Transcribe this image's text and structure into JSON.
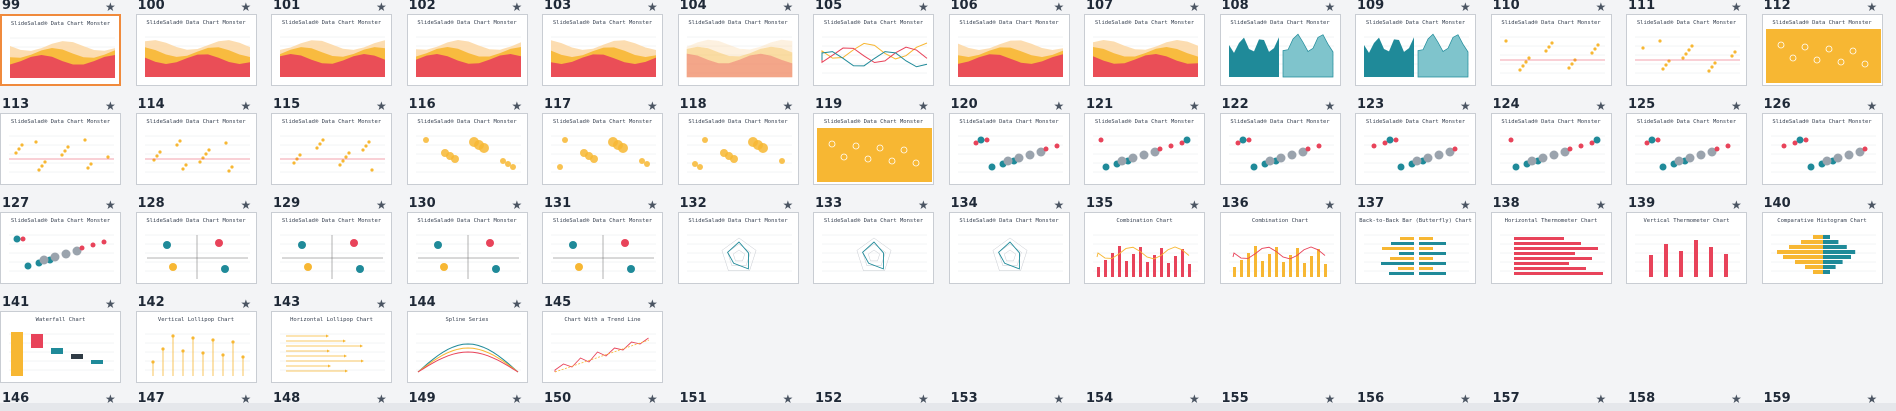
{
  "slides": [
    {
      "num": "99",
      "title": "SlideSalad® Data Chart Monster",
      "kind": "area",
      "selected": true
    },
    {
      "num": "100",
      "title": "SlideSalad® Data Chart Monster",
      "kind": "area"
    },
    {
      "num": "101",
      "title": "SlideSalad® Data Chart Monster",
      "kind": "area"
    },
    {
      "num": "102",
      "title": "SlideSalad® Data Chart Monster",
      "kind": "area"
    },
    {
      "num": "103",
      "title": "SlideSalad® Data Chart Monster",
      "kind": "area"
    },
    {
      "num": "104",
      "title": "SlideSalad® Data Chart Monster",
      "kind": "hatch"
    },
    {
      "num": "105",
      "title": "SlideSalad® Data Chart Monster",
      "kind": "line"
    },
    {
      "num": "106",
      "title": "SlideSalad® Data Chart Monster",
      "kind": "area"
    },
    {
      "num": "107",
      "title": "SlideSalad® Data Chart Monster",
      "kind": "area"
    },
    {
      "num": "108",
      "title": "SlideSalad® Data Chart Monster",
      "kind": "teal"
    },
    {
      "num": "109",
      "title": "SlideSalad® Data Chart Monster",
      "kind": "teal"
    },
    {
      "num": "110",
      "title": "SlideSalad® Data Chart Monster",
      "kind": "scatter"
    },
    {
      "num": "111",
      "title": "SlideSalad® Data Chart Monster",
      "kind": "scatter"
    },
    {
      "num": "112",
      "title": "SlideSalad® Data Chart Monster",
      "kind": "yellow"
    },
    {
      "num": "113",
      "title": "SlideSalad® Data Chart Monster",
      "kind": "scatter"
    },
    {
      "num": "114",
      "title": "SlideSalad® Data Chart Monster",
      "kind": "scatter"
    },
    {
      "num": "115",
      "title": "SlideSalad® Data Chart Monster",
      "kind": "scatter"
    },
    {
      "num": "116",
      "title": "SlideSalad® Data Chart Monster",
      "kind": "bubble"
    },
    {
      "num": "117",
      "title": "SlideSalad® Data Chart Monster",
      "kind": "bubble"
    },
    {
      "num": "118",
      "title": "SlideSalad® Data Chart Monster",
      "kind": "bubble"
    },
    {
      "num": "119",
      "title": "SlideSalad® Data Chart Monster",
      "kind": "yellow"
    },
    {
      "num": "120",
      "title": "SlideSalad® Data Chart Monster",
      "kind": "bubble2"
    },
    {
      "num": "121",
      "title": "SlideSalad® Data Chart Monster",
      "kind": "bubble2"
    },
    {
      "num": "122",
      "title": "SlideSalad® Data Chart Monster",
      "kind": "bubble2"
    },
    {
      "num": "123",
      "title": "SlideSalad® Data Chart Monster",
      "kind": "bubble2"
    },
    {
      "num": "124",
      "title": "SlideSalad® Data Chart Monster",
      "kind": "bubble2"
    },
    {
      "num": "125",
      "title": "SlideSalad® Data Chart Monster",
      "kind": "bubble2"
    },
    {
      "num": "126",
      "title": "SlideSalad® Data Chart Monster",
      "kind": "bubble2"
    },
    {
      "num": "127",
      "title": "SlideSalad® Data Chart Monster",
      "kind": "bubble2"
    },
    {
      "num": "128",
      "title": "SlideSalad® Data Chart Monster",
      "kind": "quad"
    },
    {
      "num": "129",
      "title": "SlideSalad® Data Chart Monster",
      "kind": "quad"
    },
    {
      "num": "130",
      "title": "SlideSalad® Data Chart Monster",
      "kind": "quad"
    },
    {
      "num": "131",
      "title": "SlideSalad® Data Chart Monster",
      "kind": "quad"
    },
    {
      "num": "132",
      "title": "SlideSalad® Data Chart Monster",
      "kind": "radar"
    },
    {
      "num": "133",
      "title": "SlideSalad® Data Chart Monster",
      "kind": "radar"
    },
    {
      "num": "134",
      "title": "SlideSalad® Data Chart Monster",
      "kind": "radar"
    },
    {
      "num": "135",
      "title": "Combination Chart",
      "kind": "combo"
    },
    {
      "num": "136",
      "title": "Combination Chart",
      "kind": "combo2"
    },
    {
      "num": "137",
      "title": "Back-to-Back Bar (Butterfly) Chart",
      "kind": "butterfly"
    },
    {
      "num": "138",
      "title": "Horizontal Thermometer Chart",
      "kind": "hbar"
    },
    {
      "num": "139",
      "title": "Vertical Thermometer Chart",
      "kind": "vbar"
    },
    {
      "num": "140",
      "title": "Comparative Histogram Chart",
      "kind": "histo"
    },
    {
      "num": "141",
      "title": "Waterfall Chart",
      "kind": "waterfall"
    },
    {
      "num": "142",
      "title": "Vertical Lollipop Chart",
      "kind": "vlolli"
    },
    {
      "num": "143",
      "title": "Horizontal Lollipop Chart",
      "kind": "hlolli"
    },
    {
      "num": "144",
      "title": "Spline Series",
      "kind": "spline"
    },
    {
      "num": "145",
      "title": "Chart With a Trend Line",
      "kind": "trend"
    }
  ],
  "bottom_labels": [
    "146",
    "147",
    "148",
    "149",
    "150",
    "151",
    "152",
    "153",
    "154",
    "155",
    "156",
    "157",
    "158",
    "159"
  ],
  "icons": {
    "star": "★"
  }
}
